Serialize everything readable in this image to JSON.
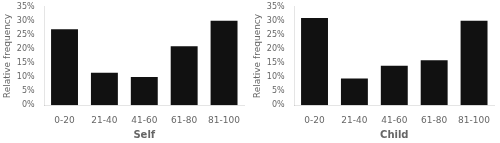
{
  "chart_data": [
    {
      "type": "bar",
      "categories": [
        "0-20",
        "21-40",
        "41-60",
        "61-80",
        "81-100"
      ],
      "values": [
        27,
        11.5,
        10,
        21,
        30
      ],
      "xlabel": "Self",
      "ylabel": "Relative frequency",
      "color": "#111111",
      "ylim": [
        0,
        35
      ],
      "yticks": [
        {
          "value": 0,
          "label": "0%"
        },
        {
          "value": 5,
          "label": "5%"
        },
        {
          "value": 10,
          "label": "10%"
        },
        {
          "value": 15,
          "label": "15%"
        },
        {
          "value": 20,
          "label": "20%"
        },
        {
          "value": 25,
          "label": "25%"
        },
        {
          "value": 30,
          "label": "30%"
        },
        {
          "value": 35,
          "label": "35%"
        }
      ],
      "grid": false
    },
    {
      "type": "bar",
      "categories": [
        "0-20",
        "21-40",
        "41-60",
        "61-80",
        "81-100"
      ],
      "values": [
        31,
        9.5,
        14,
        16,
        30
      ],
      "xlabel": "Child",
      "ylabel": "Relative frequency",
      "color": "#111111",
      "ylim": [
        0,
        35
      ],
      "yticks": [
        {
          "value": 0,
          "label": "0%"
        },
        {
          "value": 5,
          "label": "5%"
        },
        {
          "value": 10,
          "label": "10%"
        },
        {
          "value": 15,
          "label": "15%"
        },
        {
          "value": 20,
          "label": "20%"
        },
        {
          "value": 25,
          "label": "25%"
        },
        {
          "value": 30,
          "label": "30%"
        },
        {
          "value": 35,
          "label": "35%"
        }
      ],
      "grid": false
    }
  ]
}
